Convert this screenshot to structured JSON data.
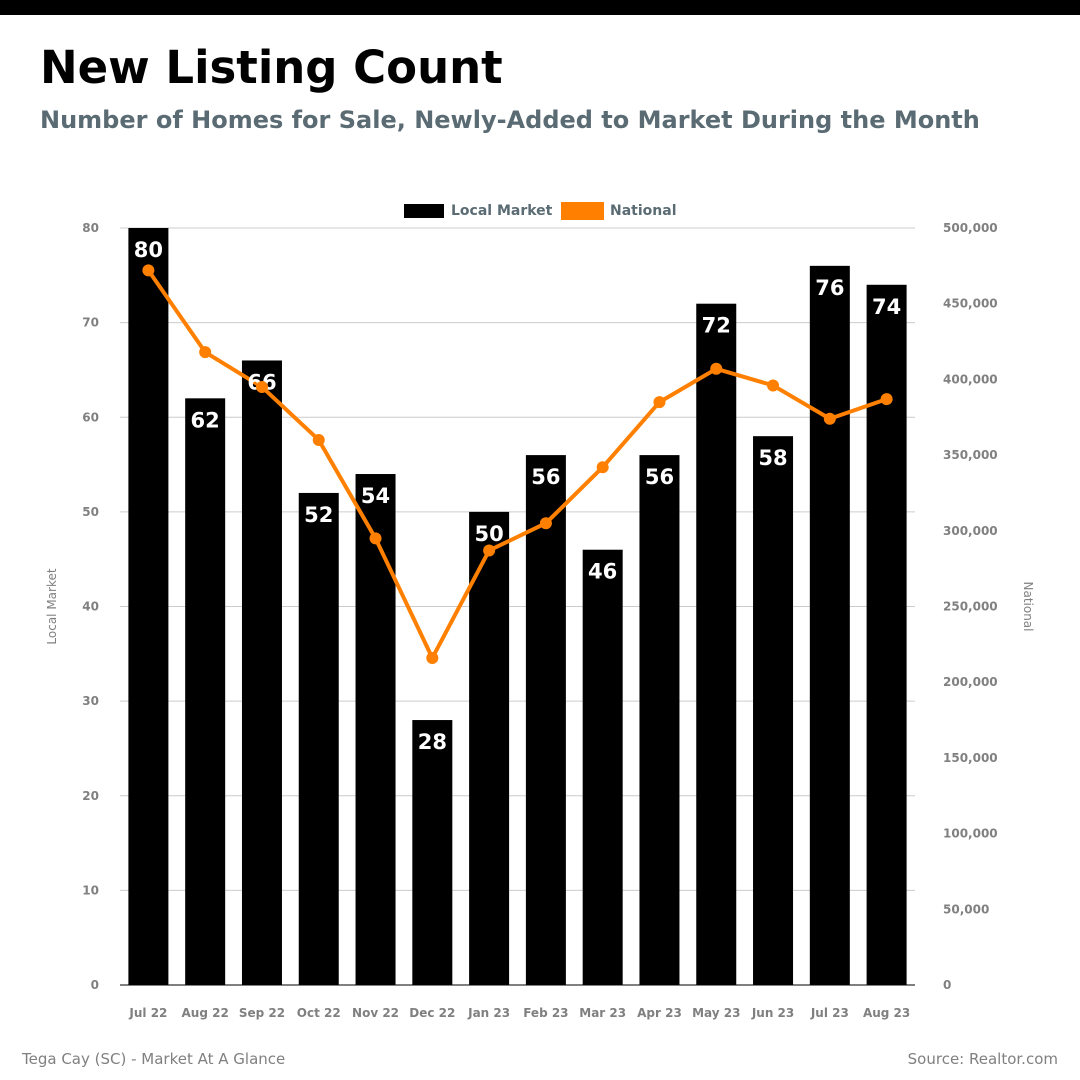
{
  "header": {
    "title": "New Listing Count",
    "subtitle": "Number of Homes for Sale, Newly-Added to Market During the Month"
  },
  "footer": {
    "left": "Tega Cay (SC) - Market At A Glance",
    "right": "Source: Realtor.com"
  },
  "colors": {
    "local": "#000000",
    "national": "#ff8000",
    "axis_text": "#808080",
    "legend_text": "#5a6b73",
    "grid": "#cccccc"
  },
  "chart_data": {
    "type": "bar",
    "categories": [
      "Jul 22",
      "Aug 22",
      "Sep 22",
      "Oct 22",
      "Nov 22",
      "Dec 22",
      "Jan 23",
      "Feb 23",
      "Mar 23",
      "Apr 23",
      "May 23",
      "Jun 23",
      "Jul 23",
      "Aug 23"
    ],
    "series": [
      {
        "name": "Local Market",
        "type": "bar",
        "axis": "left",
        "values": [
          80,
          62,
          66,
          52,
          54,
          28,
          50,
          56,
          46,
          56,
          72,
          58,
          76,
          74
        ]
      },
      {
        "name": "National",
        "type": "line",
        "axis": "right",
        "values": [
          472000,
          418000,
          395000,
          360000,
          295000,
          216000,
          287000,
          305000,
          342000,
          385000,
          407000,
          396000,
          374000,
          387000
        ]
      }
    ],
    "ylabel_left": "Local Market",
    "ylabel_right": "National",
    "ylim_left": [
      0,
      80
    ],
    "ylim_right": [
      0,
      500000
    ],
    "yticks_left": [
      "0",
      "10",
      "20",
      "30",
      "40",
      "50",
      "60",
      "70",
      "80"
    ],
    "yticks_right": [
      "0",
      "50,000",
      "100,000",
      "150,000",
      "200,000",
      "250,000",
      "300,000",
      "350,000",
      "400,000",
      "450,000",
      "500,000"
    ],
    "grid": true,
    "legend_position": "top-center"
  }
}
